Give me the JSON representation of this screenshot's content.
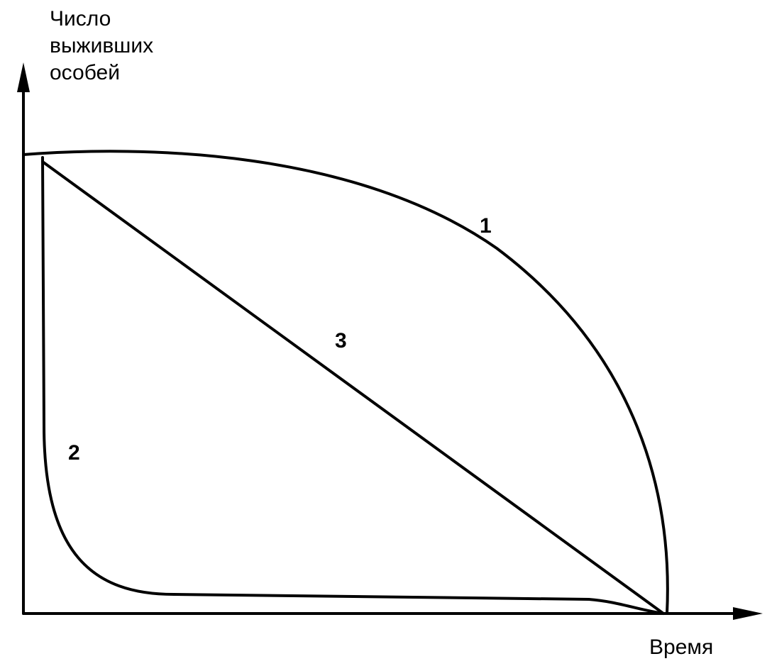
{
  "axes": {
    "y_label": [
      "Число",
      "выживших",
      "особей"
    ],
    "x_label": "Время"
  },
  "curves": [
    {
      "label": "1"
    },
    {
      "label": "2"
    },
    {
      "label": "3"
    }
  ]
}
